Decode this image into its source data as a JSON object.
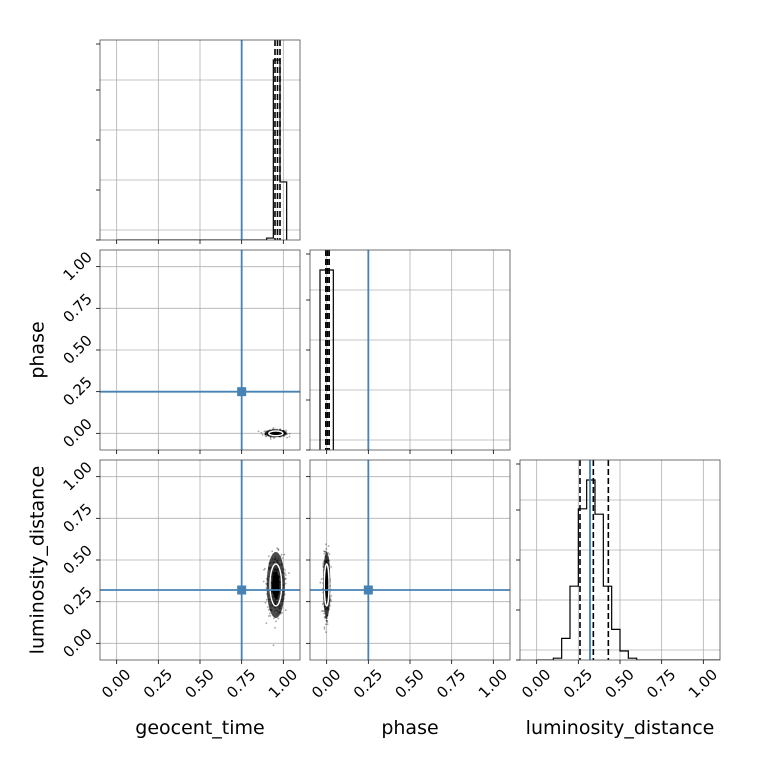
{
  "chart_data": {
    "type": "corner",
    "parameters": [
      "geocent_time",
      "phase",
      "luminosity_distance"
    ],
    "tick_values": [
      0.0,
      0.25,
      0.5,
      0.75,
      1.0
    ],
    "tick_labels": [
      "0.00",
      "0.25",
      "0.50",
      "0.75",
      "1.00"
    ],
    "range": [
      -0.1,
      1.1
    ],
    "truths": {
      "geocent_time": 0.75,
      "phase": 0.25,
      "luminosity_distance": 0.32
    },
    "truth_color": "#4682b4",
    "grid": true,
    "marginals": {
      "geocent_time": {
        "bin_edges": [
          0.0,
          0.9,
          0.94,
          0.98,
          1.02
        ],
        "counts": [
          0,
          0.01,
          0.93,
          0.3
        ],
        "quantiles": [
          0.95,
          0.965,
          0.98
        ]
      },
      "phase": {
        "bin_edges": [
          -0.04,
          0.0,
          0.04
        ],
        "counts": [
          1.0,
          1.0
        ],
        "quantiles": [
          -0.005,
          0.005,
          0.015
        ]
      },
      "luminosity_distance": {
        "bin_edges": [
          0.0,
          0.1,
          0.15,
          0.2,
          0.25,
          0.3,
          0.35,
          0.4,
          0.45,
          0.5,
          0.55,
          0.6,
          0.65,
          0.7,
          1.1
        ],
        "counts": [
          0,
          0.01,
          0.12,
          0.41,
          0.84,
          1.0,
          0.81,
          0.41,
          0.17,
          0.05,
          0.01,
          0,
          0,
          0
        ],
        "quantiles": [
          0.26,
          0.34,
          0.43
        ]
      }
    },
    "joint": [
      {
        "x": "geocent_time",
        "y": "phase",
        "center": [
          0.955,
          0.0
        ],
        "spread": [
          0.03,
          0.01
        ]
      },
      {
        "x": "geocent_time",
        "y": "luminosity_distance",
        "center": [
          0.955,
          0.35
        ],
        "spread": [
          0.025,
          0.09
        ]
      },
      {
        "x": "phase",
        "y": "luminosity_distance",
        "center": [
          0.0,
          0.35
        ],
        "spread": [
          0.01,
          0.09
        ]
      }
    ]
  }
}
